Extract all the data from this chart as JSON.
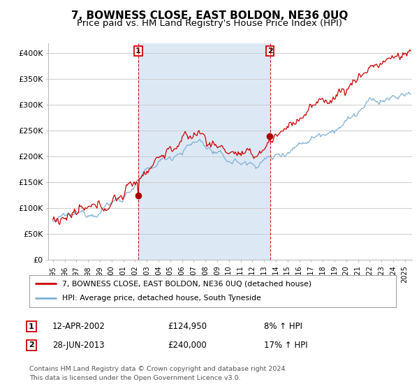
{
  "title": "7, BOWNESS CLOSE, EAST BOLDON, NE36 0UQ",
  "subtitle": "Price paid vs. HM Land Registry's House Price Index (HPI)",
  "title_fontsize": 11,
  "subtitle_fontsize": 9.5,
  "ylabel_ticks": [
    "£0",
    "£50K",
    "£100K",
    "£150K",
    "£200K",
    "£250K",
    "£300K",
    "£350K",
    "£400K"
  ],
  "ytick_values": [
    0,
    50000,
    100000,
    150000,
    200000,
    250000,
    300000,
    350000,
    400000
  ],
  "ylim": [
    0,
    420000
  ],
  "xlim_start": 1994.6,
  "xlim_end": 2025.6,
  "background_color": "#ffffff",
  "grid_color": "#cccccc",
  "shade_color": "#dce9f5",
  "hpi_color": "#7fafd4",
  "price_color": "#cc0000",
  "dashed_line_color": "#cc0000",
  "marker1_x": 2002.28,
  "marker2_x": 2013.5,
  "dot_color": "#aa0000",
  "legend_label1": "7, BOWNESS CLOSE, EAST BOLDON, NE36 0UQ (detached house)",
  "legend_label2": "HPI: Average price, detached house, South Tyneside",
  "annotation1_date": "12-APR-2002",
  "annotation1_price": "£124,950",
  "annotation1_hpi": "8% ↑ HPI",
  "annotation2_date": "28-JUN-2013",
  "annotation2_price": "£240,000",
  "annotation2_hpi": "17% ↑ HPI",
  "footer1": "Contains HM Land Registry data © Crown copyright and database right 2024.",
  "footer2": "This data is licensed under the Open Government Licence v3.0.",
  "xtick_years": [
    1995,
    1996,
    1997,
    1998,
    1999,
    2000,
    2001,
    2002,
    2003,
    2004,
    2005,
    2006,
    2007,
    2008,
    2009,
    2010,
    2011,
    2012,
    2013,
    2014,
    2015,
    2016,
    2017,
    2018,
    2019,
    2020,
    2021,
    2022,
    2023,
    2024,
    2025
  ]
}
